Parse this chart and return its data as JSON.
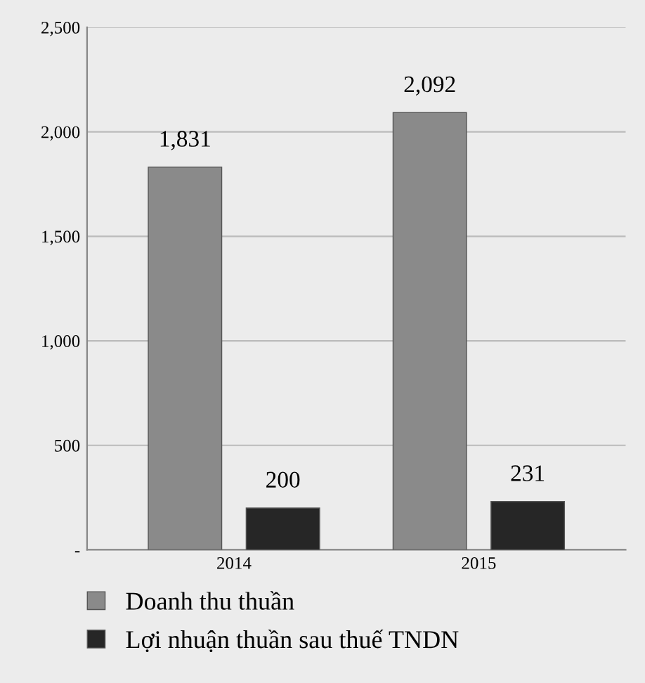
{
  "chart_data": {
    "type": "bar",
    "categories": [
      "2014",
      "2015"
    ],
    "series": [
      {
        "name": "Doanh thu thuần",
        "color": "#8a8a8a",
        "values": [
          1831,
          2092
        ],
        "value_labels": [
          "1,831",
          "2,092"
        ]
      },
      {
        "name": "Lợi nhuận thuần sau thuế TNDN",
        "color": "#262626",
        "values": [
          200,
          231
        ],
        "value_labels": [
          "200",
          "231"
        ]
      }
    ],
    "ylim": [
      0,
      2500
    ],
    "yticks": [
      {
        "value": 0,
        "label": "-"
      },
      {
        "value": 500,
        "label": "500"
      },
      {
        "value": 1000,
        "label": "1,000"
      },
      {
        "value": 1500,
        "label": "1,500"
      },
      {
        "value": 2000,
        "label": "2,000"
      },
      {
        "value": 2500,
        "label": "2,500"
      }
    ],
    "grid": "y",
    "legend": "bottom"
  }
}
